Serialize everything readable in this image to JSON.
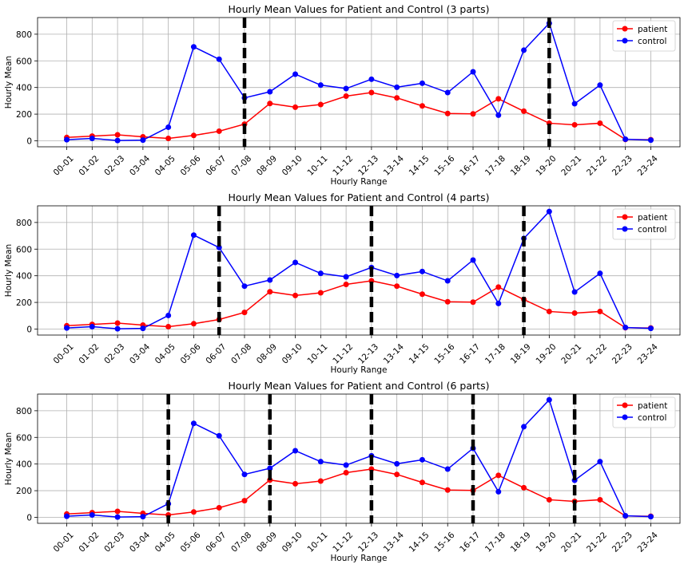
{
  "chart_data": [
    {
      "type": "line",
      "title": "Hourly Mean Values for Patient and Control (3 parts)",
      "xlabel": "Hourly Range",
      "ylabel": "Hourly Mean",
      "categories": [
        "00-01",
        "01-02",
        "02-03",
        "03-04",
        "04-05",
        "05-06",
        "06-07",
        "07-08",
        "08-09",
        "09-10",
        "10-11",
        "11-12",
        "12-13",
        "13-14",
        "14-15",
        "15-16",
        "16-17",
        "17-18",
        "18-19",
        "19-20",
        "20-21",
        "21-22",
        "22-23",
        "23-24"
      ],
      "yticks": [
        0,
        200,
        400,
        600,
        800
      ],
      "ylim": [
        -45,
        925
      ],
      "grid": true,
      "legend_position": "top-right",
      "series": [
        {
          "name": "patient",
          "color": "#ff0000",
          "values": [
            25,
            35,
            45,
            30,
            18,
            40,
            72,
            125,
            280,
            252,
            272,
            335,
            362,
            322,
            262,
            205,
            202,
            315,
            222,
            132,
            120,
            132,
            10,
            8
          ]
        },
        {
          "name": "control",
          "color": "#0000ff",
          "values": [
            8,
            18,
            2,
            5,
            102,
            705,
            612,
            322,
            368,
            500,
            418,
            392,
            462,
            402,
            432,
            362,
            518,
            192,
            680,
            882,
            278,
            418,
            12,
            5
          ]
        }
      ],
      "dividers": [
        "07-08",
        "19-20"
      ]
    },
    {
      "type": "line",
      "title": "Hourly Mean Values for Patient and Control (4 parts)",
      "xlabel": "Hourly Range",
      "ylabel": "Hourly Mean",
      "categories": [
        "00-01",
        "01-02",
        "02-03",
        "03-04",
        "04-05",
        "05-06",
        "06-07",
        "07-08",
        "08-09",
        "09-10",
        "10-11",
        "11-12",
        "12-13",
        "13-14",
        "14-15",
        "15-16",
        "16-17",
        "17-18",
        "18-19",
        "19-20",
        "20-21",
        "21-22",
        "22-23",
        "23-24"
      ],
      "yticks": [
        0,
        200,
        400,
        600,
        800
      ],
      "ylim": [
        -45,
        925
      ],
      "grid": true,
      "legend_position": "top-right",
      "series": [
        {
          "name": "patient",
          "color": "#ff0000",
          "values": [
            25,
            35,
            45,
            30,
            18,
            40,
            72,
            125,
            280,
            252,
            272,
            335,
            362,
            322,
            262,
            205,
            202,
            315,
            222,
            132,
            120,
            132,
            10,
            8
          ]
        },
        {
          "name": "control",
          "color": "#0000ff",
          "values": [
            8,
            18,
            2,
            5,
            102,
            705,
            612,
            322,
            368,
            500,
            418,
            392,
            462,
            402,
            432,
            362,
            518,
            192,
            680,
            882,
            278,
            418,
            12,
            5
          ]
        }
      ],
      "dividers": [
        "06-07",
        "12-13",
        "18-19"
      ]
    },
    {
      "type": "line",
      "title": "Hourly Mean Values for Patient and Control (6 parts)",
      "xlabel": "Hourly Range",
      "ylabel": "Hourly Mean",
      "categories": [
        "00-01",
        "01-02",
        "02-03",
        "03-04",
        "04-05",
        "05-06",
        "06-07",
        "07-08",
        "08-09",
        "09-10",
        "10-11",
        "11-12",
        "12-13",
        "13-14",
        "14-15",
        "15-16",
        "16-17",
        "17-18",
        "18-19",
        "19-20",
        "20-21",
        "21-22",
        "22-23",
        "23-24"
      ],
      "yticks": [
        0,
        200,
        400,
        600,
        800
      ],
      "ylim": [
        -45,
        925
      ],
      "grid": true,
      "legend_position": "top-right",
      "series": [
        {
          "name": "patient",
          "color": "#ff0000",
          "values": [
            25,
            35,
            45,
            30,
            18,
            40,
            72,
            125,
            280,
            252,
            272,
            335,
            362,
            322,
            262,
            205,
            202,
            315,
            222,
            132,
            120,
            132,
            10,
            8
          ]
        },
        {
          "name": "control",
          "color": "#0000ff",
          "values": [
            8,
            18,
            2,
            5,
            102,
            705,
            612,
            322,
            368,
            500,
            418,
            392,
            462,
            402,
            432,
            362,
            518,
            192,
            680,
            882,
            278,
            418,
            12,
            5
          ]
        }
      ],
      "dividers": [
        "04-05",
        "08-09",
        "12-13",
        "16-17",
        "20-21"
      ]
    }
  ]
}
